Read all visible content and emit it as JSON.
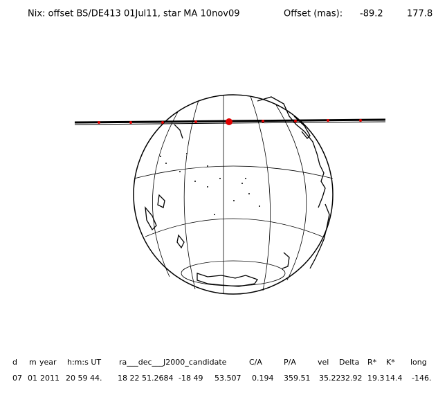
{
  "header": {
    "title": "Nix: offset BS/DE413 01Jul11, star MA 10nov09",
    "offset_label": "Offset (mas):",
    "offset_values": [
      "-89.2",
      "177.8"
    ]
  },
  "table": {
    "columns": [
      "d",
      "m",
      "year",
      "h:m:s UT",
      "ra___dec___J2000_candidate",
      "C/A",
      "P/A",
      "vel",
      "Delta",
      "R*",
      "K*",
      "long"
    ],
    "rows": [
      [
        "07",
        "01",
        "2011",
        "20 59 44.",
        "18 22 51.2684",
        "-18 49",
        "53.507",
        "0.194",
        "359.51",
        "35.22",
        "32.92",
        "19.3",
        "14.4",
        "-146."
      ]
    ]
  }
}
